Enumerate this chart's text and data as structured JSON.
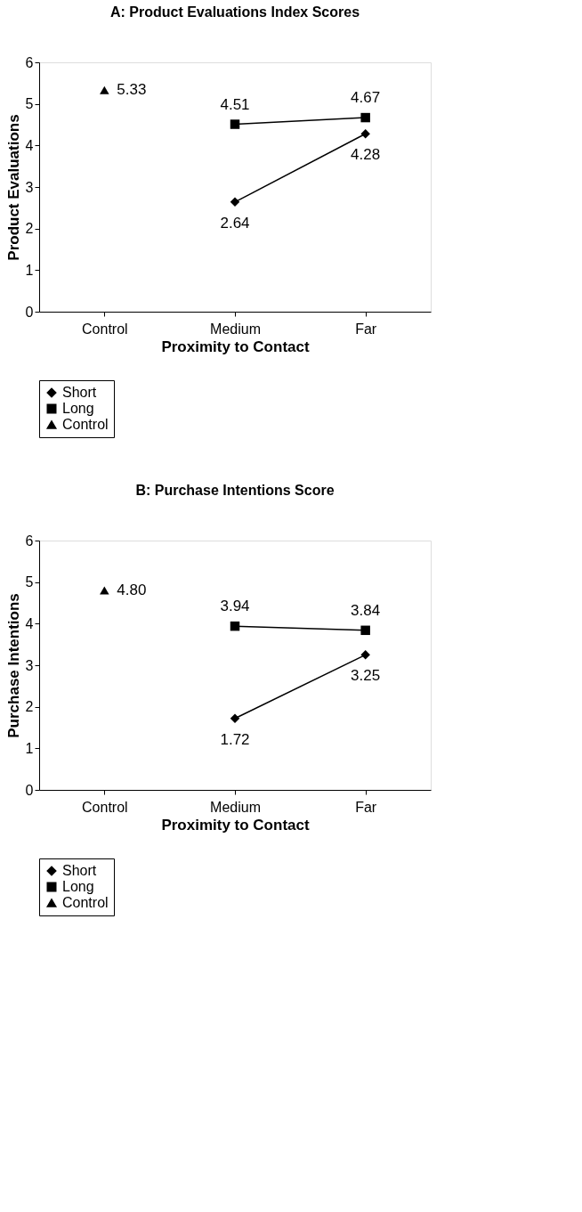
{
  "chart_data": [
    {
      "type": "line",
      "title": "A: Product Evaluations Index Scores",
      "xlabel": "Proximity to Contact",
      "ylabel": "Product Evaluations",
      "categories": [
        "Control",
        "Medium",
        "Far"
      ],
      "ylim": [
        0,
        6
      ],
      "yticks": [
        0,
        1,
        2,
        3,
        4,
        5,
        6
      ],
      "grid": false,
      "legend": "bottom",
      "series": [
        {
          "name": "Short",
          "color": "#000000",
          "marker": "diamond",
          "values": [
            null,
            2.64,
            4.28
          ],
          "value_labels": [
            null,
            "2.64",
            "4.28"
          ]
        },
        {
          "name": "Long",
          "color": "#000000",
          "marker": "square",
          "values": [
            null,
            4.51,
            4.67
          ],
          "value_labels": [
            null,
            "4.51",
            "4.67"
          ]
        },
        {
          "name": "Control",
          "color": "#000000",
          "marker": "triangle",
          "values": [
            5.33,
            null,
            null
          ],
          "value_labels": [
            "5.33",
            null,
            null
          ]
        }
      ]
    },
    {
      "type": "line",
      "title": "B: Purchase Intentions Score",
      "xlabel": "Proximity to Contact",
      "ylabel": "Purchase Intentions",
      "categories": [
        "Control",
        "Medium",
        "Far"
      ],
      "ylim": [
        0,
        6
      ],
      "yticks": [
        0,
        1,
        2,
        3,
        4,
        5,
        6
      ],
      "grid": false,
      "legend": "bottom",
      "series": [
        {
          "name": "Short",
          "color": "#000000",
          "marker": "diamond",
          "values": [
            null,
            1.72,
            3.25
          ],
          "value_labels": [
            null,
            "1.72",
            "3.25"
          ]
        },
        {
          "name": "Long",
          "color": "#000000",
          "marker": "square",
          "values": [
            null,
            3.94,
            3.84
          ],
          "value_labels": [
            null,
            "3.94",
            "3.84"
          ]
        },
        {
          "name": "Control",
          "color": "#000000",
          "marker": "triangle",
          "values": [
            4.8,
            null,
            null
          ],
          "value_labels": [
            "4.80",
            null,
            null
          ]
        }
      ]
    }
  ]
}
